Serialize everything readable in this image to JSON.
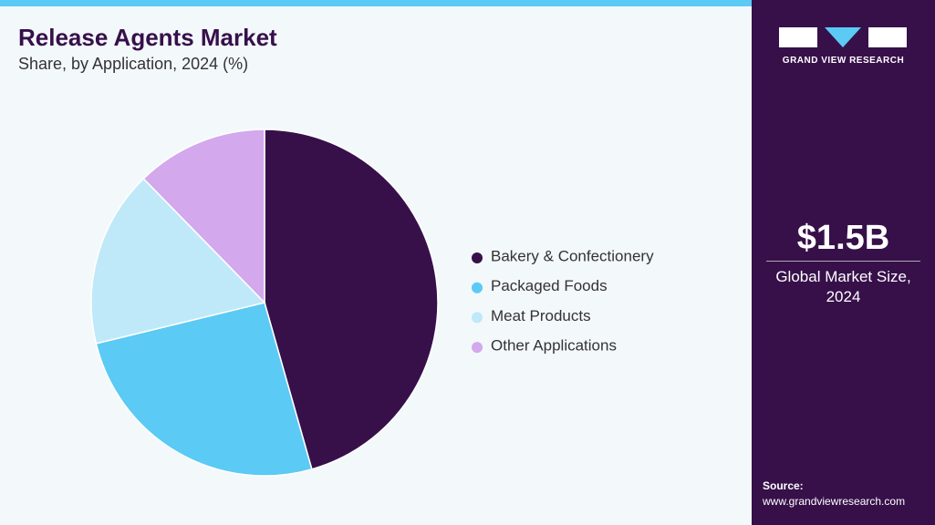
{
  "chart_data": {
    "type": "pie",
    "title": "Release Agents Market",
    "subtitle": "Share, by Application, 2024 (%)",
    "categories": [
      "Bakery & Confectionery",
      "Packaged Foods",
      "Meat Products",
      "Other Applications"
    ],
    "values": [
      45.6,
      25.6,
      16.5,
      12.3
    ],
    "colors": [
      "#37104a",
      "#5bcaf5",
      "#bfe9f8",
      "#d3a8ec"
    ]
  },
  "sidebar": {
    "logo_text": "GRAND VIEW RESEARCH",
    "market_size": "$1.5B",
    "market_label": "Global Market Size, 2024",
    "source_label": "Source:",
    "source_url": "www.grandviewresearch.com"
  }
}
